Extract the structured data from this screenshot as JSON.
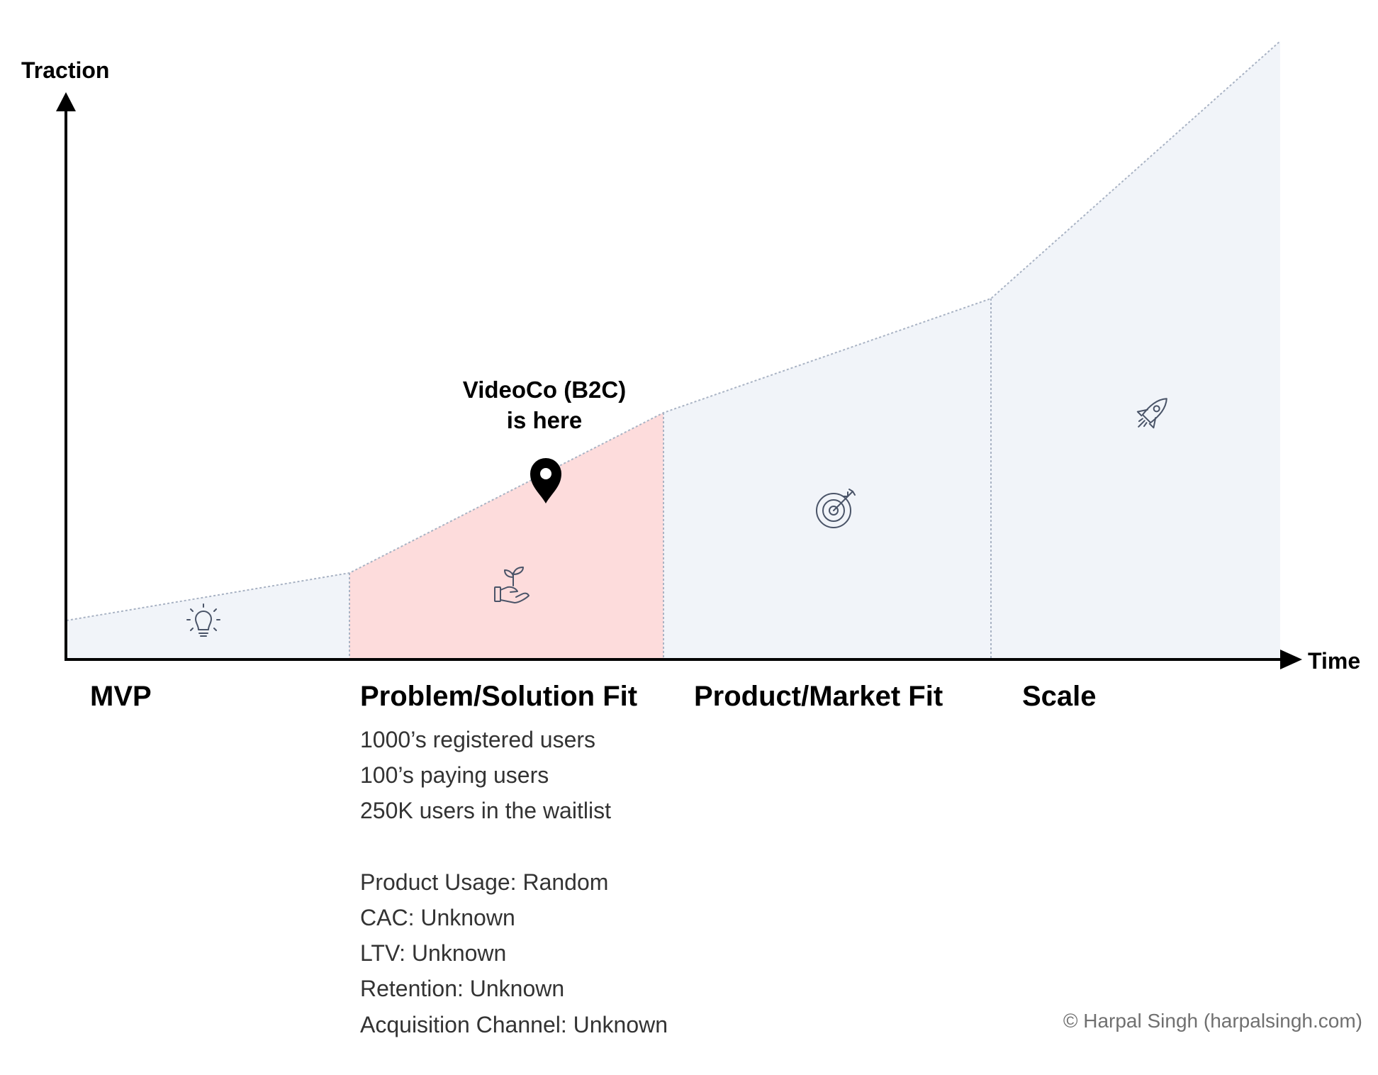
{
  "axes": {
    "y_label": "Traction",
    "x_label": "Time"
  },
  "marker": {
    "line1": "VideoCo (B2C)",
    "line2": "is here",
    "icon": "map-pin-icon"
  },
  "stages": [
    {
      "title": "MVP",
      "icon": "lightbulb-icon",
      "highlighted": false
    },
    {
      "title": "Problem/Solution Fit",
      "icon": "hand-sprout-icon",
      "highlighted": true
    },
    {
      "title": "Product/Market Fit",
      "icon": "target-arrow-icon",
      "highlighted": false
    },
    {
      "title": "Scale",
      "icon": "rocket-icon",
      "highlighted": false
    }
  ],
  "metrics": [
    "1000’s registered users",
    "100’s paying users",
    "250K users in the waitlist",
    "",
    "Product Usage: Random",
    "CAC: Unknown",
    "LTV: Unknown",
    "Retention: Unknown",
    "Acquisition Channel: Unknown"
  ],
  "colors": {
    "stage_fill": "#f1f4f9",
    "highlight_fill": "#fddcdc",
    "boundary_line": "#a9b3c4",
    "icon_stroke": "#4a5468",
    "axis": "#000000"
  },
  "copyright": "© Harpal Singh (harpalsingh.com)"
}
